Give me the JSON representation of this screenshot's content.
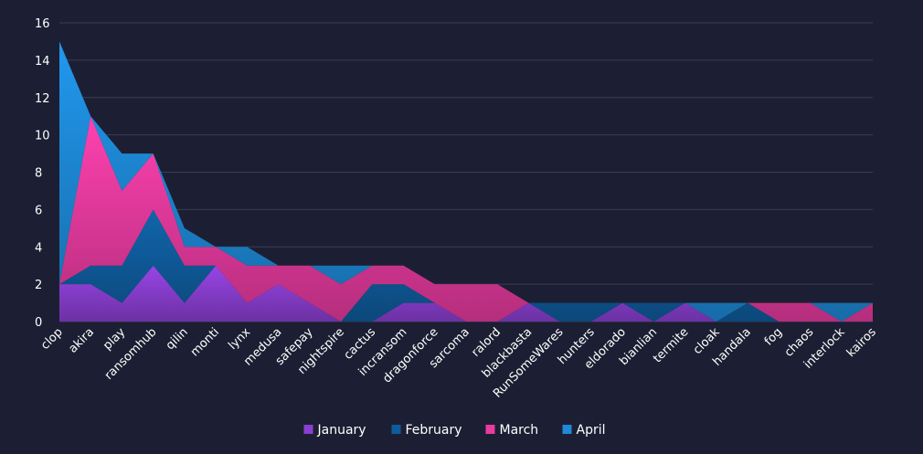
{
  "chart_data": {
    "type": "area",
    "stacked": true,
    "categories": [
      "clop",
      "akira",
      "play",
      "ransomhub",
      "qilin",
      "monti",
      "lynx",
      "medusa",
      "safepay",
      "nightspire",
      "cactus",
      "incransom",
      "dragonforce",
      "sarcoma",
      "ralord",
      "blackbasta",
      "RunSomeWares",
      "hunters",
      "eldorado",
      "bianlian",
      "termite",
      "cloak",
      "handala",
      "fog",
      "chaos",
      "interlock",
      "kairos"
    ],
    "series": [
      {
        "name": "January",
        "color": "#8a3fd1",
        "values": [
          2,
          2,
          1,
          3,
          1,
          3,
          1,
          2,
          1,
          0,
          0,
          1,
          1,
          0,
          0,
          1,
          0,
          0,
          1,
          0,
          1,
          0,
          0,
          0,
          0,
          0,
          0
        ]
      },
      {
        "name": "February",
        "color": "#0f5c9c",
        "values": [
          0,
          1,
          2,
          3,
          2,
          0,
          0,
          0,
          0,
          0,
          2,
          1,
          0,
          0,
          0,
          0,
          1,
          1,
          0,
          1,
          0,
          0,
          1,
          0,
          0,
          0,
          0
        ]
      },
      {
        "name": "March",
        "color": "#e83ba0",
        "values": [
          0,
          8,
          4,
          3,
          1,
          1,
          2,
          1,
          2,
          2,
          1,
          1,
          1,
          2,
          2,
          0,
          0,
          0,
          0,
          0,
          0,
          0,
          0,
          1,
          1,
          0,
          1
        ]
      },
      {
        "name": "April",
        "color": "#1e8ad8",
        "values": [
          13,
          0,
          2,
          0,
          1,
          0,
          1,
          0,
          0,
          1,
          0,
          0,
          0,
          0,
          0,
          0,
          0,
          0,
          0,
          0,
          0,
          1,
          0,
          0,
          0,
          1,
          0
        ]
      }
    ],
    "ylim": [
      0,
      16
    ],
    "yticks": [
      0,
      2,
      4,
      6,
      8,
      10,
      12,
      14,
      16
    ],
    "grid": true,
    "legend_position": "bottom-center",
    "background": "#1c1f33",
    "grid_color": "#3a3e55"
  }
}
